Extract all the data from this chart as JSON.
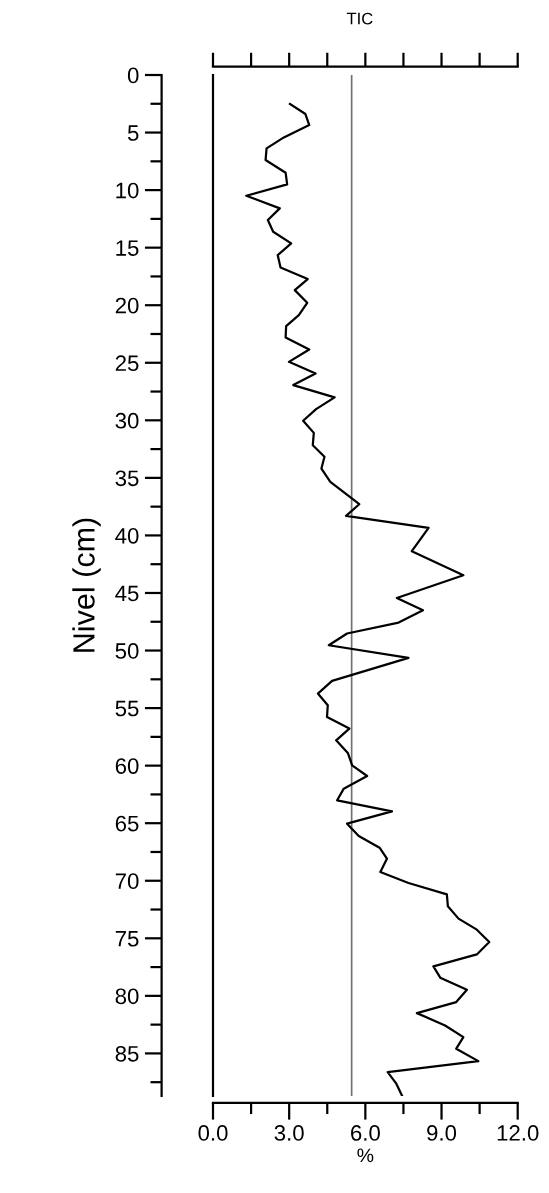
{
  "chart_data": {
    "type": "line",
    "orientation": "horizontal",
    "title": "TIC",
    "xlabel": "%",
    "ylabel": "Nivel (cm)",
    "series": [
      {
        "color": "#000000",
        "x": [
          2.52,
          3.39,
          4.35,
          5.42,
          6.37,
          7.39,
          8.49,
          9.5,
          10.49,
          11.59,
          12.6,
          13.62,
          14.63,
          15.65,
          16.72,
          17.73,
          18.69,
          19.79,
          20.86,
          21.82,
          22.8,
          23.85,
          24.92,
          25.93,
          26.94,
          28.01,
          29.03,
          30.04,
          31.09,
          32.16,
          33.17,
          34.19,
          35.35,
          36.8,
          37.29,
          38.3,
          39.35,
          41.37,
          43.46,
          45.43,
          46.5,
          47.57,
          48.52,
          49.54,
          50.64,
          52.64,
          53.74,
          54.75,
          55.77,
          56.78,
          57.8,
          58.9,
          59.97,
          60.9,
          62.0,
          63.01,
          63.97,
          65.04,
          66.11,
          67.13,
          68.08,
          69.24,
          70.2,
          71.18,
          72.22,
          73.29,
          74.25,
          75.32,
          76.4,
          77.44,
          78.42,
          79.47,
          80.54,
          81.5,
          82.57,
          83.58,
          84.59,
          85.67,
          86.63,
          87.63,
          88.65
        ],
        "values": [
          3.03,
          3.64,
          3.79,
          2.79,
          2.11,
          2.07,
          2.86,
          2.92,
          1.31,
          2.63,
          2.16,
          2.37,
          3.08,
          2.55,
          2.66,
          3.73,
          3.22,
          3.71,
          3.38,
          2.88,
          2.86,
          3.79,
          2.99,
          4.04,
          3.16,
          4.79,
          4.06,
          3.55,
          3.97,
          3.93,
          4.39,
          4.27,
          4.62,
          5.48,
          5.76,
          5.24,
          8.49,
          7.83,
          9.86,
          7.24,
          8.27,
          7.31,
          5.28,
          4.56,
          7.7,
          4.69,
          4.13,
          4.52,
          4.49,
          5.37,
          4.85,
          5.31,
          5.48,
          6.07,
          5.15,
          4.89,
          7.05,
          5.28,
          5.74,
          6.56,
          6.85,
          6.59,
          7.7,
          9.21,
          9.25,
          9.67,
          10.39,
          10.88,
          10.39,
          8.68,
          8.95,
          10.0,
          9.58,
          8.03,
          9.14,
          9.86,
          9.58,
          10.45,
          6.88,
          7.22,
          7.44
        ]
      }
    ],
    "xlim": [
      0,
      12
    ],
    "xticks": [
      {
        "value": 0,
        "label": "0.0"
      },
      {
        "value": 1.5,
        "label": null
      },
      {
        "value": 3,
        "label": "3.0"
      },
      {
        "value": 4.5,
        "label": null
      },
      {
        "value": 6,
        "label": "6.0"
      },
      {
        "value": 7.5,
        "label": null
      },
      {
        "value": 9,
        "label": "9.0"
      },
      {
        "value": 10.5,
        "label": null
      },
      {
        "value": 12,
        "label": "12.0"
      }
    ],
    "ylim": [
      88.7,
      0
    ],
    "yticks": [
      0,
      5,
      10,
      15,
      20,
      25,
      30,
      35,
      40,
      45,
      50,
      55,
      60,
      65,
      70,
      75,
      80,
      85
    ],
    "ref_lines": [
      {
        "axis": "x",
        "value": 5.46,
        "color": "#707070"
      }
    ],
    "grid": false,
    "legend": false,
    "marker": "none",
    "line_style": "solid"
  }
}
